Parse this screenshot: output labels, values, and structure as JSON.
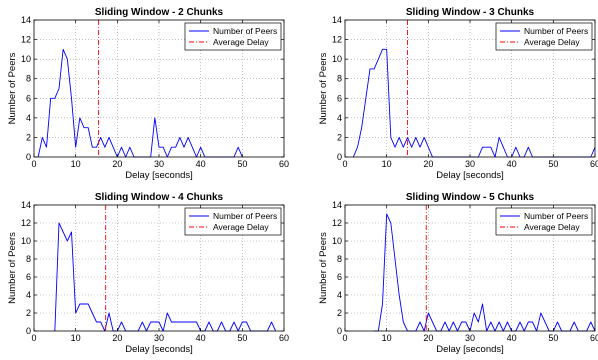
{
  "chart_data": [
    {
      "type": "line",
      "title": "Sliding Window - 2 Chunks",
      "xlabel": "Delay [seconds]",
      "ylabel": "Number of Peers",
      "xlim": [
        0,
        60
      ],
      "ylim": [
        0,
        14
      ],
      "xticks": [
        0,
        10,
        20,
        30,
        40,
        50,
        60
      ],
      "yticks": [
        0,
        2,
        4,
        6,
        8,
        10,
        12,
        14
      ],
      "grid": true,
      "legend_position": "top-right",
      "average_delay": 15.5,
      "series": [
        {
          "name": "Number of Peers",
          "color": "#0000ff",
          "x": [
            1,
            2,
            3,
            4,
            5,
            6,
            7,
            8,
            9,
            10,
            11,
            12,
            13,
            14,
            15,
            16,
            17,
            18,
            19,
            20,
            21,
            22,
            23,
            24,
            25,
            26,
            27,
            28,
            29,
            30,
            31,
            32,
            33,
            34,
            35,
            36,
            37,
            38,
            39,
            40,
            41,
            42,
            43,
            44,
            45,
            46,
            47,
            48,
            49,
            50
          ],
          "y": [
            0,
            2,
            1,
            6,
            6,
            7,
            11,
            10,
            6,
            1,
            4,
            3,
            3,
            1,
            1,
            2,
            1,
            2,
            1,
            0,
            1,
            0,
            1,
            0,
            0,
            0,
            0,
            0,
            4,
            1,
            1,
            0,
            1,
            1,
            2,
            1,
            2,
            1,
            0,
            1,
            0,
            0,
            0,
            0,
            0,
            0,
            0,
            0,
            1,
            0
          ]
        },
        {
          "name": "Average Delay",
          "color": "#ff0000",
          "style": "dash-dot"
        }
      ]
    },
    {
      "type": "line",
      "title": "Sliding Window - 3 Chunks",
      "xlabel": "Delay [seconds]",
      "ylabel": "Number of Peers",
      "xlim": [
        0,
        60
      ],
      "ylim": [
        0,
        14
      ],
      "xticks": [
        0,
        10,
        20,
        30,
        40,
        50,
        60
      ],
      "yticks": [
        0,
        2,
        4,
        6,
        8,
        10,
        12,
        14
      ],
      "grid": true,
      "legend_position": "top-right",
      "average_delay": 15,
      "series": [
        {
          "name": "Number of Peers",
          "color": "#0000ff",
          "x": [
            2,
            3,
            4,
            5,
            6,
            7,
            8,
            9,
            10,
            11,
            12,
            13,
            14,
            15,
            16,
            17,
            18,
            19,
            20,
            21,
            22,
            23,
            24,
            25,
            26,
            27,
            28,
            29,
            30,
            31,
            32,
            33,
            34,
            35,
            36,
            37,
            38,
            39,
            40,
            41,
            42,
            43,
            44,
            45,
            46,
            47,
            48,
            49,
            50,
            51,
            52,
            53,
            54,
            55,
            56,
            57,
            58,
            59,
            60
          ],
          "y": [
            0,
            1,
            3,
            6,
            9,
            9,
            10,
            11,
            11,
            2,
            1,
            2,
            1,
            2,
            1,
            2,
            1,
            2,
            1,
            0,
            0,
            0,
            0,
            0,
            0,
            0,
            0,
            0,
            0,
            0,
            0,
            1,
            1,
            1,
            0,
            2,
            1,
            0,
            0,
            1,
            0,
            0,
            1,
            0,
            0,
            0,
            0,
            0,
            0,
            0,
            0,
            0,
            0,
            0,
            0,
            0,
            0,
            0,
            1
          ]
        },
        {
          "name": "Average Delay",
          "color": "#ff0000",
          "style": "dash-dot"
        }
      ]
    },
    {
      "type": "line",
      "title": "Sliding Window - 4 Chunks",
      "xlabel": "Delay [seconds]",
      "ylabel": "Number of Peers",
      "xlim": [
        0,
        60
      ],
      "ylim": [
        0,
        14
      ],
      "xticks": [
        0,
        10,
        20,
        30,
        40,
        50,
        60
      ],
      "yticks": [
        0,
        2,
        4,
        6,
        8,
        10,
        12,
        14
      ],
      "grid": true,
      "legend_position": "top-right",
      "average_delay": 17.2,
      "series": [
        {
          "name": "Number of Peers",
          "color": "#0000ff",
          "x": [
            5,
            6,
            7,
            8,
            9,
            10,
            11,
            12,
            13,
            14,
            15,
            16,
            17,
            18,
            19,
            20,
            21,
            22,
            23,
            24,
            25,
            26,
            27,
            28,
            29,
            30,
            31,
            32,
            33,
            34,
            35,
            36,
            37,
            38,
            39,
            40,
            41,
            42,
            43,
            44,
            45,
            46,
            47,
            48,
            49,
            50,
            51,
            52,
            53,
            54,
            55,
            56,
            57,
            58
          ],
          "y": [
            0,
            12,
            11,
            10,
            11,
            2,
            3,
            3,
            3,
            2,
            1,
            1,
            0,
            2,
            0,
            0,
            1,
            0,
            0,
            0,
            0,
            1,
            0,
            1,
            1,
            1,
            0,
            2,
            1,
            1,
            1,
            1,
            1,
            1,
            1,
            0,
            0,
            1,
            0,
            0,
            1,
            0,
            0,
            1,
            0,
            1,
            1,
            0,
            0,
            0,
            0,
            0,
            1,
            0
          ]
        },
        {
          "name": "Average Delay",
          "color": "#ff0000",
          "style": "dash-dot"
        }
      ]
    },
    {
      "type": "line",
      "title": "Sliding Window - 5 Chunks",
      "xlabel": "Delay [seconds]",
      "ylabel": "Number of Peers",
      "xlim": [
        0,
        60
      ],
      "ylim": [
        0,
        14
      ],
      "xticks": [
        0,
        10,
        20,
        30,
        40,
        50,
        60
      ],
      "yticks": [
        0,
        2,
        4,
        6,
        8,
        10,
        12,
        14
      ],
      "grid": true,
      "legend_position": "top-right",
      "average_delay": 19.5,
      "series": [
        {
          "name": "Number of Peers",
          "color": "#0000ff",
          "x": [
            7,
            8,
            9,
            10,
            11,
            12,
            13,
            14,
            15,
            16,
            17,
            18,
            19,
            20,
            21,
            22,
            23,
            24,
            25,
            26,
            27,
            28,
            29,
            30,
            31,
            32,
            33,
            34,
            35,
            36,
            37,
            38,
            39,
            40,
            41,
            42,
            43,
            44,
            45,
            46,
            47,
            48,
            49,
            50,
            51,
            52,
            53,
            54,
            55,
            56,
            57,
            58,
            59,
            60
          ],
          "y": [
            0,
            0,
            3,
            13,
            12,
            8,
            4,
            1,
            0,
            0,
            0,
            1,
            0,
            2,
            1,
            0,
            0,
            1,
            0,
            1,
            0,
            1,
            1,
            0,
            2,
            1,
            3,
            0,
            1,
            0,
            1,
            0,
            1,
            0,
            0,
            1,
            0,
            1,
            1,
            0,
            2,
            1,
            0,
            0,
            1,
            0,
            0,
            0,
            1,
            0,
            0,
            0,
            1,
            0
          ]
        },
        {
          "name": "Average Delay",
          "color": "#ff0000",
          "style": "dash-dot"
        }
      ]
    }
  ]
}
